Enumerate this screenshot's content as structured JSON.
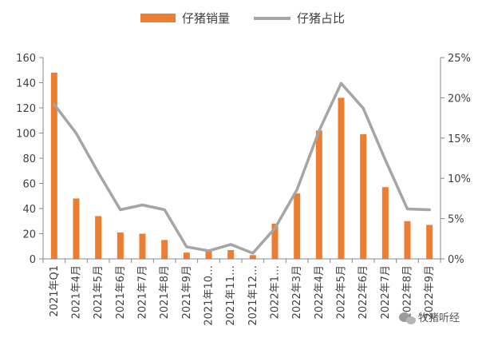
{
  "chart_data": {
    "type": "bar+line",
    "categories": [
      "2021年Q1",
      "2021年4月",
      "2021年5月",
      "2021年6月",
      "2021年7月",
      "2021年8月",
      "2021年9月",
      "2021年10…",
      "2021年11…",
      "2021年12…",
      "2022年1…",
      "2022年3月",
      "2022年4月",
      "2022年5月",
      "2022年6月",
      "2022年7月",
      "2022年8月",
      "2022年9月"
    ],
    "series": [
      {
        "name": "仔猪销量",
        "type": "bar",
        "axis": "left",
        "color": "#ED7D31",
        "values": [
          148,
          48,
          34,
          21,
          20,
          15,
          5,
          6,
          7,
          3,
          28,
          52,
          102,
          128,
          99,
          57,
          30,
          27
        ]
      },
      {
        "name": "仔猪占比",
        "type": "line",
        "axis": "right",
        "color": "#A5A5A5",
        "values": [
          19.2,
          15.6,
          10.7,
          6.1,
          6.7,
          6.1,
          1.5,
          1.0,
          1.8,
          0.7,
          3.8,
          8.6,
          15.9,
          21.8,
          18.7,
          12.3,
          6.2,
          6.1
        ]
      }
    ],
    "yleft": {
      "min": 0,
      "max": 160,
      "ticks": [
        0,
        20,
        40,
        60,
        80,
        100,
        120,
        140,
        160
      ]
    },
    "yright": {
      "min": 0,
      "max": 25,
      "ticks": [
        "0%",
        "5%",
        "10%",
        "15%",
        "20%",
        "25%"
      ]
    },
    "legend": {
      "placement": "top-center",
      "items": [
        "仔猪销量",
        "仔猪占比"
      ]
    },
    "grid": false
  },
  "watermark": {
    "text": "牧猪听经",
    "icon": "wechat-icon"
  }
}
